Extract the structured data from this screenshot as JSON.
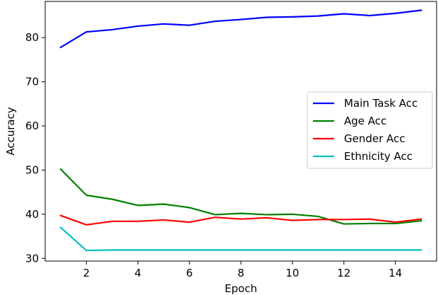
{
  "chart_data": {
    "type": "line",
    "title": "",
    "xlabel": "Epoch",
    "ylabel": "Accuracy",
    "xlim": [
      0.4,
      15.6
    ],
    "ylim": [
      29.4,
      88.2
    ],
    "x_ticks": [
      2,
      4,
      6,
      8,
      10,
      12,
      14
    ],
    "y_ticks": [
      30,
      40,
      50,
      60,
      70,
      80
    ],
    "grid": false,
    "legend_position": "center-right",
    "x": [
      1,
      2,
      3,
      4,
      5,
      6,
      7,
      8,
      9,
      10,
      11,
      12,
      13,
      14,
      15
    ],
    "series": [
      {
        "name": "Main Task Acc",
        "color": "#0000ff",
        "values": [
          77.8,
          81.3,
          81.8,
          82.6,
          83.1,
          82.8,
          83.7,
          84.1,
          84.6,
          84.7,
          84.9,
          85.4,
          85.0,
          85.5,
          86.2
        ]
      },
      {
        "name": "Age Acc",
        "color": "#008000",
        "values": [
          50.2,
          44.3,
          43.4,
          42.0,
          42.3,
          41.5,
          39.9,
          40.2,
          39.9,
          40.0,
          39.5,
          37.8,
          37.9,
          37.9,
          38.5
        ]
      },
      {
        "name": "Gender Acc",
        "color": "#ff0000",
        "values": [
          39.7,
          37.6,
          38.4,
          38.4,
          38.7,
          38.2,
          39.3,
          38.9,
          39.2,
          38.6,
          38.8,
          38.8,
          38.9,
          38.2,
          38.9
        ]
      },
      {
        "name": "Ethnicity Acc",
        "color": "#00bfbf",
        "values": [
          37.0,
          31.8,
          31.9,
          31.9,
          31.9,
          31.9,
          31.9,
          31.9,
          31.9,
          31.9,
          31.9,
          31.9,
          31.9,
          31.9,
          31.9
        ]
      }
    ]
  }
}
